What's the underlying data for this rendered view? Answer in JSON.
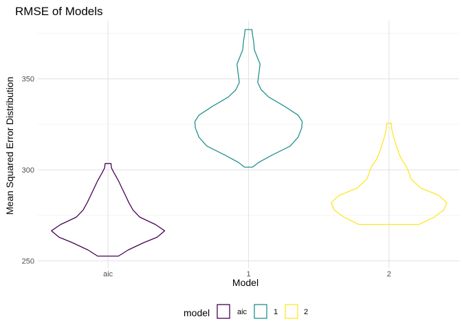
{
  "chart_data": {
    "type": "violin",
    "title": "RMSE of Models",
    "xlabel": "Model",
    "ylabel": "Mean Squared Error Distribution",
    "categories": [
      "aic",
      "1",
      "2"
    ],
    "ylim": [
      246,
      382
    ],
    "y_ticks": [
      250,
      300,
      350
    ],
    "grid": true,
    "legend": {
      "title": "model",
      "position": "bottom",
      "entries": [
        "aic",
        "1",
        "2"
      ]
    },
    "series": [
      {
        "name": "aic",
        "color": "#440154",
        "min": 252.6,
        "max": 303.5,
        "density": [
          [
            252.6,
            0.18
          ],
          [
            256.0,
            0.35
          ],
          [
            260.0,
            0.62
          ],
          [
            263.0,
            0.85
          ],
          [
            266.5,
            0.98
          ],
          [
            270.0,
            0.82
          ],
          [
            274.0,
            0.55
          ],
          [
            278.0,
            0.43
          ],
          [
            282.0,
            0.36
          ],
          [
            286.0,
            0.3
          ],
          [
            290.0,
            0.24
          ],
          [
            294.0,
            0.18
          ],
          [
            298.0,
            0.11
          ],
          [
            301.0,
            0.06
          ],
          [
            303.5,
            0.05
          ]
        ]
      },
      {
        "name": "1",
        "color": "#21908C",
        "min": 301.5,
        "max": 377.1,
        "density": [
          [
            301.5,
            0.07
          ],
          [
            304.0,
            0.17
          ],
          [
            308.0,
            0.4
          ],
          [
            313.0,
            0.72
          ],
          [
            318.0,
            0.86
          ],
          [
            323.0,
            0.92
          ],
          [
            326.5,
            0.93
          ],
          [
            330.0,
            0.86
          ],
          [
            335.0,
            0.62
          ],
          [
            340.0,
            0.35
          ],
          [
            344.0,
            0.22
          ],
          [
            348.0,
            0.16
          ],
          [
            353.0,
            0.18
          ],
          [
            358.0,
            0.2
          ],
          [
            362.0,
            0.15
          ],
          [
            366.0,
            0.1
          ],
          [
            370.0,
            0.09
          ],
          [
            374.0,
            0.07
          ],
          [
            377.1,
            0.06
          ]
        ]
      },
      {
        "name": "2",
        "color": "#FDE725",
        "min": 270.0,
        "max": 325.6,
        "density": [
          [
            270.0,
            0.52
          ],
          [
            274.0,
            0.78
          ],
          [
            278.0,
            0.95
          ],
          [
            282.0,
            1.0
          ],
          [
            286.0,
            0.86
          ],
          [
            290.0,
            0.55
          ],
          [
            295.0,
            0.38
          ],
          [
            299.0,
            0.34
          ],
          [
            302.0,
            0.3
          ],
          [
            305.0,
            0.23
          ],
          [
            309.0,
            0.17
          ],
          [
            313.0,
            0.13
          ],
          [
            318.0,
            0.08
          ],
          [
            322.0,
            0.05
          ],
          [
            325.6,
            0.04
          ]
        ]
      }
    ]
  }
}
